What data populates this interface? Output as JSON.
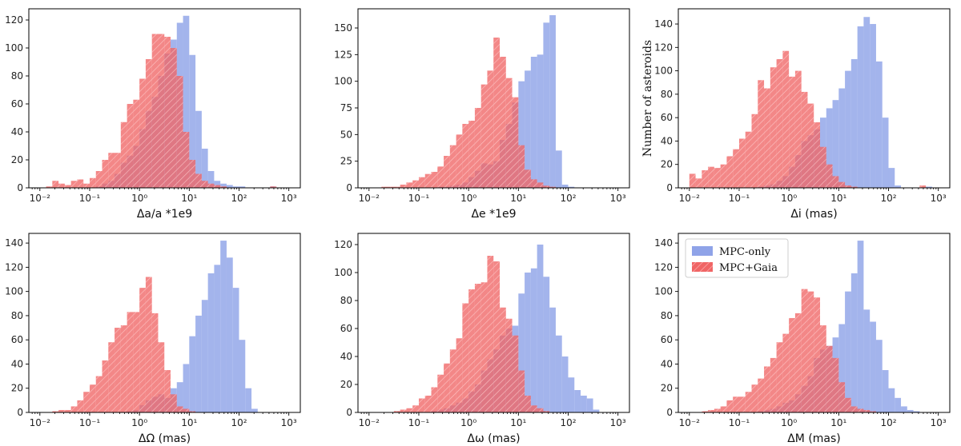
{
  "colors": {
    "mpc_only": "#8fa3e8",
    "mpc_gaia": "#f06565",
    "hatch": "#ffd0d0"
  },
  "chart_data": [
    {
      "type": "bar",
      "id": "a",
      "xlabel": "Δa/a *1e9",
      "ylabel": "",
      "xscale": "log",
      "xlim": [
        0.006,
        1700
      ],
      "ylim": [
        0,
        128
      ],
      "bin_range": [
        0.01,
        1000
      ],
      "xticks": [
        0.01,
        0.1,
        1,
        10,
        100,
        1000
      ],
      "xtick_labels": [
        "10⁻²",
        "10⁻¹",
        "10⁰",
        "10¹",
        "10²",
        "10³"
      ],
      "yticks": [
        0,
        20,
        40,
        60,
        80,
        100,
        120
      ],
      "ytick_labels": [
        "0",
        "20",
        "40",
        "60",
        "80",
        "100",
        "120"
      ],
      "series": [
        {
          "name": "MPC-only",
          "values": [
            0,
            0,
            0,
            0,
            0,
            0,
            0,
            0,
            0,
            1,
            3,
            5,
            10,
            18,
            23,
            30,
            42,
            55,
            65,
            80,
            96,
            106,
            118,
            123,
            95,
            55,
            28,
            12,
            5,
            3,
            2,
            1,
            1,
            0,
            0,
            0,
            0,
            1,
            0,
            0
          ]
        },
        {
          "name": "MPC+Gaia",
          "values": [
            0,
            1,
            5,
            3,
            2,
            5,
            6,
            3,
            7,
            12,
            20,
            25,
            25,
            47,
            60,
            63,
            78,
            92,
            110,
            110,
            108,
            100,
            80,
            40,
            20,
            10,
            5,
            3,
            2,
            1,
            0,
            0,
            0,
            0,
            0,
            0,
            0,
            1,
            0,
            0
          ]
        }
      ]
    },
    {
      "type": "bar",
      "id": "e",
      "xlabel": "Δe *1e9",
      "ylabel": "",
      "xscale": "log",
      "xlim": [
        0.006,
        1700
      ],
      "ylim": [
        0,
        168
      ],
      "bin_range": [
        0.01,
        1000
      ],
      "xticks": [
        0.01,
        0.1,
        1,
        10,
        100,
        1000
      ],
      "xtick_labels": [
        "10⁻²",
        "10⁻¹",
        "10⁰",
        "10¹",
        "10²",
        "10³"
      ],
      "yticks": [
        0,
        25,
        50,
        75,
        100,
        125,
        150
      ],
      "ytick_labels": [
        "0",
        "25",
        "50",
        "75",
        "100",
        "125",
        "150"
      ],
      "series": [
        {
          "name": "MPC-only",
          "values": [
            0,
            0,
            0,
            0,
            0,
            0,
            0,
            0,
            0,
            0,
            0,
            1,
            1,
            2,
            3,
            5,
            10,
            16,
            23,
            22,
            25,
            45,
            60,
            80,
            100,
            110,
            123,
            125,
            155,
            162,
            35,
            3,
            1,
            0,
            0,
            0,
            0,
            0,
            0,
            0
          ]
        },
        {
          "name": "MPC+Gaia",
          "values": [
            0,
            0,
            1,
            1,
            1,
            3,
            5,
            7,
            10,
            13,
            15,
            20,
            30,
            40,
            50,
            60,
            63,
            75,
            97,
            110,
            141,
            123,
            103,
            85,
            40,
            17,
            8,
            5,
            2,
            1,
            0,
            0,
            0,
            0,
            0,
            0,
            0,
            0,
            0,
            0
          ]
        }
      ]
    },
    {
      "type": "bar",
      "id": "i",
      "xlabel": "Δi (mas)",
      "ylabel": "Number of asteroids",
      "xscale": "log",
      "xlim": [
        0.006,
        1700
      ],
      "ylim": [
        0,
        153
      ],
      "bin_range": [
        0.01,
        1000
      ],
      "xticks": [
        0.01,
        0.1,
        1,
        10,
        100,
        1000
      ],
      "xtick_labels": [
        "10⁻²",
        "10⁻¹",
        "10⁰",
        "10¹",
        "10²",
        "10³"
      ],
      "yticks": [
        0,
        20,
        40,
        60,
        80,
        100,
        120,
        140
      ],
      "ytick_labels": [
        "0",
        "20",
        "40",
        "60",
        "80",
        "100",
        "120",
        "140"
      ],
      "series": [
        {
          "name": "MPC-only",
          "values": [
            0,
            0,
            0,
            0,
            0,
            0,
            0,
            0,
            0,
            0,
            0,
            1,
            2,
            3,
            6,
            10,
            18,
            28,
            40,
            45,
            50,
            60,
            68,
            75,
            85,
            100,
            110,
            138,
            146,
            140,
            108,
            60,
            17,
            2,
            0,
            0,
            0,
            0,
            1,
            0
          ]
        },
        {
          "name": "MPC+Gaia",
          "values": [
            12,
            8,
            15,
            18,
            17,
            20,
            27,
            33,
            42,
            48,
            63,
            92,
            85,
            103,
            110,
            117,
            95,
            100,
            82,
            72,
            56,
            35,
            20,
            10,
            5,
            2,
            1,
            0,
            0,
            0,
            0,
            0,
            0,
            0,
            0,
            0,
            0,
            2,
            0,
            0
          ]
        }
      ]
    },
    {
      "type": "bar",
      "id": "Omega",
      "xlabel": "ΔΩ (mas)",
      "ylabel": "",
      "xscale": "log",
      "xlim": [
        0.006,
        1700
      ],
      "ylim": [
        0,
        148
      ],
      "bin_range": [
        0.01,
        1000
      ],
      "xticks": [
        0.01,
        0.1,
        1,
        10,
        100,
        1000
      ],
      "xtick_labels": [
        "10⁻²",
        "10⁻¹",
        "10⁰",
        "10¹",
        "10²",
        "10³"
      ],
      "yticks": [
        0,
        20,
        40,
        60,
        80,
        100,
        120,
        140
      ],
      "ytick_labels": [
        "0",
        "20",
        "40",
        "60",
        "80",
        "100",
        "120",
        "140"
      ],
      "series": [
        {
          "name": "MPC-only",
          "values": [
            0,
            0,
            0,
            0,
            0,
            0,
            0,
            0,
            0,
            0,
            0,
            0,
            0,
            0,
            1,
            2,
            6,
            10,
            13,
            15,
            12,
            20,
            25,
            40,
            63,
            80,
            93,
            115,
            122,
            142,
            128,
            103,
            60,
            20,
            3,
            0,
            0,
            0,
            0,
            0
          ]
        },
        {
          "name": "MPC+Gaia",
          "values": [
            0,
            0,
            1,
            2,
            2,
            5,
            10,
            17,
            23,
            30,
            43,
            58,
            70,
            72,
            83,
            83,
            103,
            112,
            82,
            58,
            35,
            15,
            5,
            3,
            1,
            0,
            0,
            0,
            0,
            0,
            0,
            0,
            0,
            0,
            0,
            0,
            0,
            0,
            0,
            0
          ]
        }
      ]
    },
    {
      "type": "bar",
      "id": "omega",
      "xlabel": "Δω (mas)",
      "ylabel": "",
      "xscale": "log",
      "xlim": [
        0.006,
        1700
      ],
      "ylim": [
        0,
        128
      ],
      "bin_range": [
        0.01,
        1000
      ],
      "xticks": [
        0.01,
        0.1,
        1,
        10,
        100,
        1000
      ],
      "xtick_labels": [
        "10⁻²",
        "10⁻¹",
        "10⁰",
        "10¹",
        "10²",
        "10³"
      ],
      "yticks": [
        0,
        20,
        40,
        60,
        80,
        100,
        120
      ],
      "ytick_labels": [
        "0",
        "20",
        "40",
        "60",
        "80",
        "100",
        "120"
      ],
      "series": [
        {
          "name": "MPC-only",
          "values": [
            0,
            0,
            0,
            0,
            0,
            0,
            0,
            0,
            0,
            0,
            1,
            2,
            3,
            5,
            7,
            10,
            15,
            20,
            30,
            38,
            45,
            55,
            60,
            62,
            85,
            100,
            103,
            120,
            97,
            75,
            55,
            40,
            25,
            16,
            12,
            10,
            2,
            0,
            0,
            0
          ]
        },
        {
          "name": "MPC+Gaia",
          "values": [
            0,
            0,
            0,
            0,
            1,
            2,
            3,
            5,
            10,
            12,
            18,
            27,
            35,
            45,
            53,
            78,
            88,
            92,
            93,
            112,
            108,
            75,
            67,
            55,
            30,
            12,
            5,
            3,
            1,
            0,
            0,
            0,
            0,
            0,
            0,
            0,
            0,
            0,
            0,
            0
          ]
        }
      ]
    },
    {
      "type": "bar",
      "id": "M",
      "xlabel": "ΔM (mas)",
      "ylabel": "",
      "xscale": "log",
      "xlim": [
        0.006,
        1700
      ],
      "ylim": [
        0,
        148
      ],
      "bin_range": [
        0.01,
        1000
      ],
      "xticks": [
        0.01,
        0.1,
        1,
        10,
        100,
        1000
      ],
      "xtick_labels": [
        "10⁻²",
        "10⁻¹",
        "10⁰",
        "10¹",
        "10²",
        "10³"
      ],
      "yticks": [
        0,
        20,
        40,
        60,
        80,
        100,
        120,
        140
      ],
      "ytick_labels": [
        "0",
        "20",
        "40",
        "60",
        "80",
        "100",
        "120",
        "140"
      ],
      "legend": {
        "placement": "top-left",
        "entries": [
          "MPC-only",
          "MPC+Gaia"
        ]
      },
      "series": [
        {
          "name": "MPC-only",
          "values": [
            0,
            0,
            0,
            0,
            0,
            0,
            0,
            0,
            0,
            0,
            0,
            1,
            2,
            3,
            5,
            8,
            10,
            15,
            22,
            30,
            45,
            52,
            55,
            62,
            73,
            100,
            115,
            142,
            85,
            75,
            60,
            35,
            20,
            12,
            5,
            2,
            1,
            0,
            0,
            0
          ]
        },
        {
          "name": "MPC+Gaia",
          "values": [
            0,
            0,
            1,
            2,
            3,
            5,
            10,
            13,
            13,
            17,
            23,
            28,
            38,
            45,
            58,
            65,
            78,
            82,
            102,
            100,
            95,
            72,
            55,
            45,
            25,
            12,
            5,
            3,
            2,
            1,
            0,
            0,
            0,
            0,
            0,
            0,
            0,
            0,
            0,
            0
          ]
        }
      ]
    }
  ]
}
